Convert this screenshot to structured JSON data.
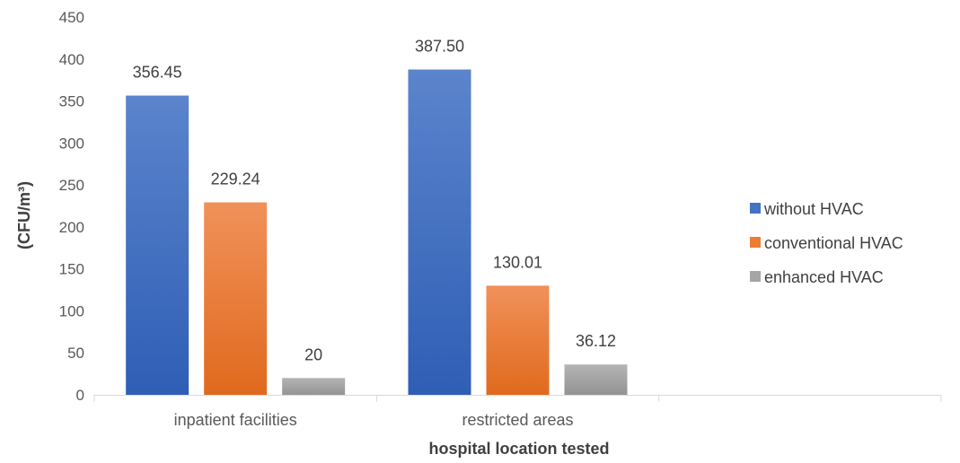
{
  "chart_data": {
    "type": "bar",
    "title": "",
    "xlabel": "hospital location tested",
    "ylabel": "(CFU/m³)",
    "ylim": [
      0,
      450
    ],
    "yticks": [
      0,
      50,
      100,
      150,
      200,
      250,
      300,
      350,
      400,
      450
    ],
    "grid": false,
    "legend_position": "right",
    "categories": [
      "inpatient facilities",
      "restricted areas",
      ""
    ],
    "series": [
      {
        "name": "without HVAC",
        "color": "#4472C4",
        "values": [
          356.45,
          387.5,
          null
        ],
        "labels": [
          "356.45",
          "387.50",
          ""
        ]
      },
      {
        "name": "conventional HVAC",
        "color": "#ED7D31",
        "values": [
          229.24,
          130.01,
          null
        ],
        "labels": [
          "229.24",
          "130.01",
          ""
        ]
      },
      {
        "name": "enhanced HVAC",
        "color": "#A5A5A5",
        "values": [
          20,
          36.12,
          null
        ],
        "labels": [
          "20",
          "36.12",
          ""
        ]
      }
    ]
  }
}
